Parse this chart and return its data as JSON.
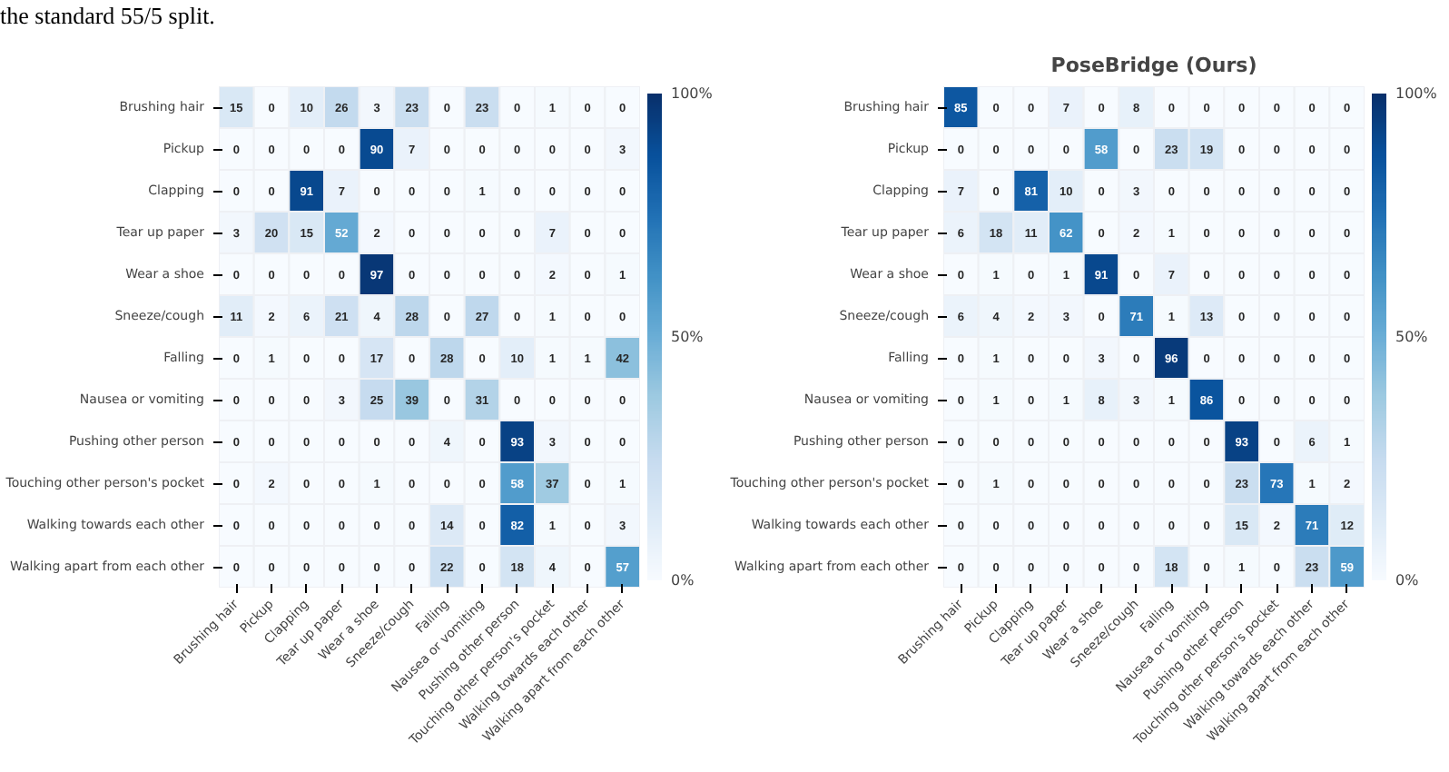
{
  "chart_data": [
    {
      "type": "heatmap",
      "annotations": [
        "the standard 55/5 split."
      ],
      "categories": [
        "Brushing hair",
        "Pickup",
        "Clapping",
        "Tear up paper",
        "Wear a shoe",
        "Sneeze/cough",
        "Falling",
        "Nausea or vomiting",
        "Pushing other person",
        "Touching other person's pocket",
        "Walking towards each other",
        "Walking apart from each other"
      ],
      "y_categories": [
        "Brushing hair",
        "Pickup",
        "Clapping",
        "Tear up paper",
        "Wear a shoe",
        "Sneeze/cough",
        "Falling",
        "Nausea or vomiting",
        "Pushing other person",
        "Touching other person's pocket",
        "Walking towards each other",
        "Walking apart from each other"
      ],
      "cells": [
        [
          15,
          0,
          10,
          26,
          3,
          23,
          0,
          23,
          0,
          1,
          0,
          0
        ],
        [
          0,
          0,
          0,
          0,
          90,
          7,
          0,
          0,
          0,
          0,
          0,
          3
        ],
        [
          0,
          0,
          91,
          7,
          0,
          0,
          0,
          1,
          0,
          0,
          0,
          0
        ],
        [
          3,
          20,
          15,
          52,
          2,
          0,
          0,
          0,
          0,
          7,
          0,
          0
        ],
        [
          0,
          0,
          0,
          0,
          97,
          0,
          0,
          0,
          0,
          2,
          0,
          1
        ],
        [
          11,
          2,
          6,
          21,
          4,
          28,
          0,
          27,
          0,
          1,
          0,
          0
        ],
        [
          0,
          1,
          0,
          0,
          17,
          0,
          28,
          0,
          10,
          1,
          1,
          42
        ],
        [
          0,
          0,
          0,
          3,
          25,
          39,
          0,
          31,
          0,
          0,
          0,
          0
        ],
        [
          0,
          0,
          0,
          0,
          0,
          0,
          4,
          0,
          93,
          3,
          0,
          0
        ],
        [
          0,
          2,
          0,
          0,
          1,
          0,
          0,
          0,
          58,
          37,
          0,
          1
        ],
        [
          0,
          0,
          0,
          0,
          0,
          0,
          14,
          0,
          82,
          1,
          0,
          3
        ],
        [
          0,
          0,
          0,
          0,
          0,
          0,
          22,
          0,
          18,
          4,
          0,
          57
        ]
      ],
      "data_labels": true,
      "clim": [
        0,
        100
      ],
      "cticks": [
        {
          "value": 0,
          "label": "0%"
        },
        {
          "value": 50,
          "label": "50%"
        },
        {
          "value": 100,
          "label": "100%"
        }
      ]
    },
    {
      "type": "heatmap",
      "title": "PoseBridge (Ours)",
      "categories": [
        "Brushing hair",
        "Pickup",
        "Clapping",
        "Tear up paper",
        "Wear a shoe",
        "Sneeze/cough",
        "Falling",
        "Nausea or vomiting",
        "Pushing other person",
        "Touching other person's pocket",
        "Walking towards each other",
        "Walking apart from each other"
      ],
      "y_categories": [
        "Brushing hair",
        "Pickup",
        "Clapping",
        "Tear up paper",
        "Wear a shoe",
        "Sneeze/cough",
        "Falling",
        "Nausea or vomiting",
        "Pushing other person",
        "Touching other person's pocket",
        "Walking towards each other",
        "Walking apart from each other"
      ],
      "cells": [
        [
          85,
          0,
          0,
          7,
          0,
          8,
          0,
          0,
          0,
          0,
          0,
          0
        ],
        [
          0,
          0,
          0,
          0,
          58,
          0,
          23,
          19,
          0,
          0,
          0,
          0
        ],
        [
          7,
          0,
          81,
          10,
          0,
          3,
          0,
          0,
          0,
          0,
          0,
          0
        ],
        [
          6,
          18,
          11,
          62,
          0,
          2,
          1,
          0,
          0,
          0,
          0,
          0
        ],
        [
          0,
          1,
          0,
          1,
          91,
          0,
          7,
          0,
          0,
          0,
          0,
          0
        ],
        [
          6,
          4,
          2,
          3,
          0,
          71,
          1,
          13,
          0,
          0,
          0,
          0
        ],
        [
          0,
          1,
          0,
          0,
          3,
          0,
          96,
          0,
          0,
          0,
          0,
          0
        ],
        [
          0,
          1,
          0,
          1,
          8,
          3,
          1,
          86,
          0,
          0,
          0,
          0
        ],
        [
          0,
          0,
          0,
          0,
          0,
          0,
          0,
          0,
          93,
          0,
          6,
          1
        ],
        [
          0,
          1,
          0,
          0,
          0,
          0,
          0,
          0,
          23,
          73,
          1,
          2
        ],
        [
          0,
          0,
          0,
          0,
          0,
          0,
          0,
          0,
          15,
          2,
          71,
          12
        ],
        [
          0,
          0,
          0,
          0,
          0,
          0,
          18,
          0,
          1,
          0,
          23,
          59
        ]
      ],
      "data_labels": true,
      "clim": [
        0,
        100
      ],
      "cticks": [
        {
          "value": 0,
          "label": "0%"
        },
        {
          "value": 50,
          "label": "50%"
        },
        {
          "value": 100,
          "label": "100%"
        }
      ]
    }
  ]
}
